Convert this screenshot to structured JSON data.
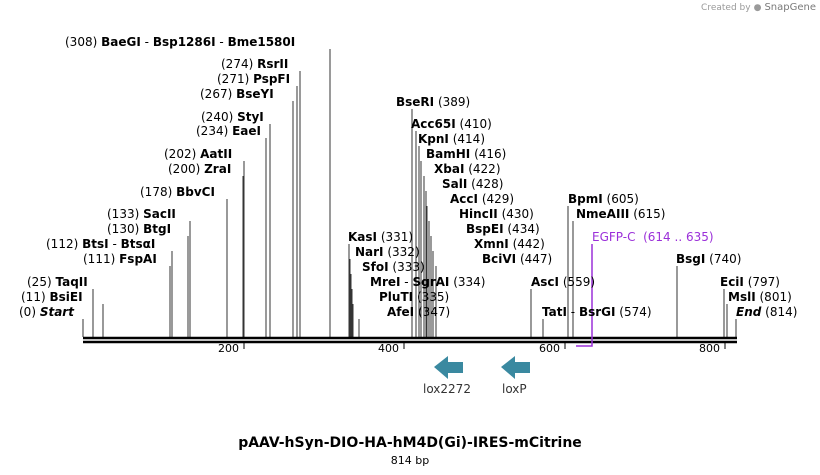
{
  "credit": {
    "created_by": "Created by",
    "brand": "SnapGene"
  },
  "title": "pAAV-hSyn-DIO-HA-hM4D(Gi)-IRES-mCitrine",
  "subtitle": "814 bp",
  "axis": {
    "ticks": [
      "200",
      "400",
      "600",
      "800"
    ]
  },
  "sites": [
    {
      "pos": "(308)",
      "name": "BaeGI",
      "extra": [
        {
          "sep": "-",
          "name": "Bsp1286I"
        },
        {
          "sep": "-",
          "name": "Bme1580I"
        }
      ]
    },
    {
      "pos": "(274)",
      "name": "RsrII"
    },
    {
      "pos": "(271)",
      "name": "PspFI"
    },
    {
      "pos": "(267)",
      "name": "BseYI"
    },
    {
      "pos": "(240)",
      "name": "StyI"
    },
    {
      "pos": "(234)",
      "name": "EaeI"
    },
    {
      "pos": "(202)",
      "name": "AatII"
    },
    {
      "pos": "(200)",
      "name": "ZraI"
    },
    {
      "pos": "(178)",
      "name": "BbvCI"
    },
    {
      "pos": "(133)",
      "name": "SacII"
    },
    {
      "pos": "(130)",
      "name": "BtgI"
    },
    {
      "pos": "(112)",
      "name": "BtsI",
      "extra": [
        {
          "sep": "-",
          "name": "BtsαI"
        }
      ]
    },
    {
      "pos": "(111)",
      "name": "FspAI"
    },
    {
      "pos": "(25)",
      "name": "TaqII"
    },
    {
      "pos": "(11)",
      "name": "BsiEI"
    },
    {
      "pos": "(0)",
      "name": "Start"
    },
    {
      "pos": "(389)",
      "name": "BseRI"
    },
    {
      "pos": "(410)",
      "name": "Acc65I"
    },
    {
      "pos": "(414)",
      "name": "KpnI"
    },
    {
      "pos": "(416)",
      "name": "BamHI"
    },
    {
      "pos": "(422)",
      "name": "XbaI"
    },
    {
      "pos": "(428)",
      "name": "SalI"
    },
    {
      "pos": "(429)",
      "name": "AccI"
    },
    {
      "pos": "(430)",
      "name": "HincII"
    },
    {
      "pos": "(434)",
      "name": "BspEI"
    },
    {
      "pos": "(442)",
      "name": "XmnI"
    },
    {
      "pos": "(447)",
      "name": "BciVI"
    },
    {
      "pos": "(331)",
      "name": "KasI"
    },
    {
      "pos": "(332)",
      "name": "NarI"
    },
    {
      "pos": "(333)",
      "name": "SfoI"
    },
    {
      "pos": "(334)",
      "name": "MreI",
      "extra": [
        {
          "sep": "-",
          "name": "SgrAI"
        }
      ]
    },
    {
      "pos": "(335)",
      "name": "PluTI"
    },
    {
      "pos": "(347)",
      "name": "AfeI"
    },
    {
      "pos": "(605)",
      "name": "BpmI"
    },
    {
      "pos": "(615)",
      "name": "NmeAIII"
    },
    {
      "pos": "(559)",
      "name": "AscI"
    },
    {
      "pos": "(574)",
      "name": "TatI",
      "extra": [
        {
          "sep": "-",
          "name": "BsrGI"
        }
      ]
    },
    {
      "pos": "(740)",
      "name": "BsgI"
    },
    {
      "pos": "(797)",
      "name": "EciI"
    },
    {
      "pos": "(801)",
      "name": "MslI"
    },
    {
      "pos": "(814)",
      "name": "End"
    }
  ],
  "features": [
    {
      "name": "lox2272"
    },
    {
      "name": "loxP"
    }
  ],
  "egfp": {
    "name": "EGFP-C",
    "range": "(614 .. 635)"
  },
  "colors": {
    "arrow": "#3a89a0",
    "egfp": "#9b30d9",
    "backbone": "#000000"
  }
}
